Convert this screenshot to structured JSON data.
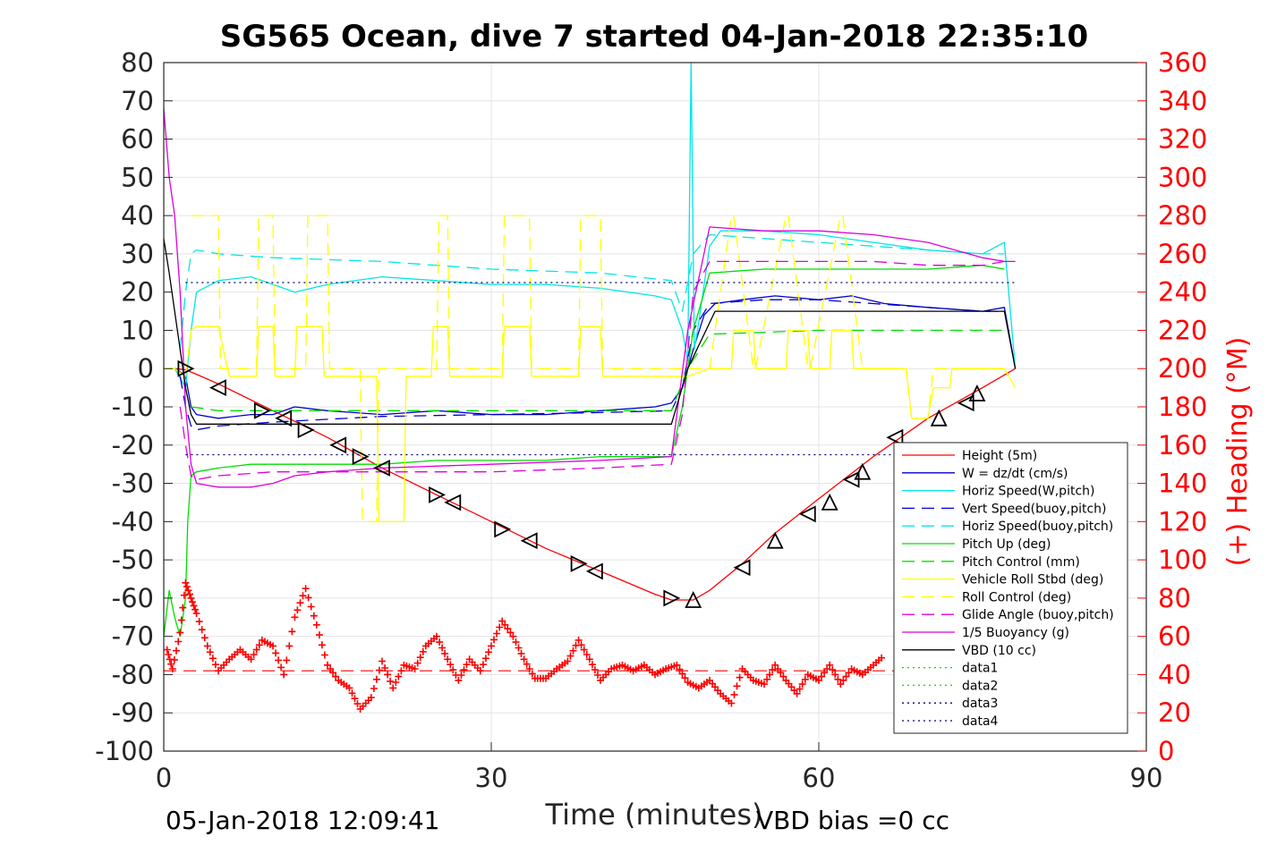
{
  "chart_data": {
    "type": "line",
    "title": "SG565 Ocean, dive 7 started 04-Jan-2018 22:35:10",
    "xlabel": "Time (minutes)",
    "ylabel_right": "(+) Heading (°M)",
    "xlim": [
      0,
      90
    ],
    "ylim": [
      -100,
      80
    ],
    "ylim_right": [
      0,
      360
    ],
    "x_ticks": [
      "0",
      "30",
      "60",
      "90"
    ],
    "y_ticks": [
      "80",
      "70",
      "60",
      "50",
      "40",
      "30",
      "20",
      "10",
      "0",
      "-10",
      "-20",
      "-30",
      "-40",
      "-50",
      "-60",
      "-70",
      "-80",
      "-90",
      "-100"
    ],
    "y_ticks_right": [
      "360",
      "340",
      "320",
      "300",
      "280",
      "260",
      "240",
      "220",
      "200",
      "180",
      "160",
      "140",
      "120",
      "100",
      "80",
      "60",
      "40",
      "20",
      "0"
    ],
    "grid": true,
    "legend_position": "bottom-right",
    "footer_left": "05-Jan-2018 12:09:41",
    "footer_right": "VBD bias =0 cc",
    "colors": {
      "red": "#ff0000",
      "blue": "#0000cc",
      "cyan": "#00e6e6",
      "green": "#00dd00",
      "yellow": "#ffff00",
      "magenta": "#dd00dd",
      "black": "#000000",
      "navy": "#000080"
    },
    "series": [
      {
        "name": "Height (5m)",
        "color": "red",
        "style": "solid",
        "x": [
          0,
          1,
          2,
          3,
          5,
          10,
          15,
          20,
          25,
          30,
          35,
          40,
          45,
          46.5,
          48.5,
          50,
          53,
          56,
          60,
          65,
          70,
          75,
          78
        ],
        "y": [
          0,
          0,
          -0.3,
          -1.5,
          -4,
          -11,
          -18,
          -26,
          -33,
          -40,
          -47,
          -53,
          -59,
          -60.5,
          -60.5,
          -58,
          -51,
          -43,
          -34,
          -23,
          -13,
          -5,
          0
        ]
      },
      {
        "name": "W = dz/dt (cm/s)",
        "color": "blue",
        "style": "solid",
        "x": [
          0,
          1,
          1.6,
          2,
          2.5,
          3,
          5,
          8,
          10,
          12,
          15,
          20,
          25,
          30,
          35,
          40,
          45,
          46.5,
          47.5,
          48.5,
          49.5,
          50.5,
          53,
          56,
          60,
          63,
          66,
          70,
          75,
          77,
          78
        ],
        "y": [
          0,
          0,
          -1,
          -2,
          -10,
          -12,
          -13,
          -12,
          -12,
          -10,
          -11,
          -12,
          -11,
          -12,
          -12,
          -11,
          -10,
          -9,
          -5,
          5,
          14,
          17,
          18,
          19,
          18,
          19,
          17,
          16,
          15,
          16,
          0
        ]
      },
      {
        "name": "Horiz Speed(W,pitch)",
        "color": "cyan",
        "style": "solid",
        "x": [
          0,
          1,
          2,
          2.5,
          3,
          5,
          8,
          10,
          12,
          15,
          20,
          25,
          30,
          35,
          40,
          45,
          46.5,
          47.5,
          48,
          48.3,
          48.6,
          49,
          50,
          51,
          55,
          60,
          65,
          70,
          75,
          77,
          78
        ],
        "y": [
          0,
          0,
          -5,
          10,
          20,
          23,
          24,
          22,
          20,
          22,
          24,
          23,
          22,
          22,
          21,
          19,
          18,
          10,
          2,
          80,
          5,
          12,
          32,
          36,
          36,
          35,
          33,
          31,
          30,
          33,
          0
        ]
      },
      {
        "name": "Vert Speed(buoy,pitch)",
        "color": "blue",
        "style": "dashed",
        "x": [
          1.5,
          2,
          2.5,
          3,
          5,
          10,
          20,
          30,
          40,
          46.5,
          47.5,
          48.5,
          50,
          55,
          60,
          65,
          70,
          75,
          77
        ],
        "y": [
          -2,
          -10,
          -15,
          -16,
          -15,
          -14,
          -12.5,
          -12,
          -11.5,
          -11,
          -5,
          10,
          17,
          18,
          18,
          17,
          16,
          15,
          15
        ]
      },
      {
        "name": "Horiz Speed(buoy,pitch)",
        "color": "cyan",
        "style": "dashed",
        "x": [
          1.5,
          2,
          2.5,
          3,
          5,
          10,
          20,
          30,
          40,
          46.5,
          47.5,
          48.5,
          50,
          55,
          60,
          65,
          70,
          75,
          77
        ],
        "y": [
          5,
          20,
          30,
          31,
          30,
          29,
          28,
          26,
          25,
          23,
          15,
          30,
          35,
          34,
          33,
          32,
          31,
          30,
          30
        ]
      },
      {
        "name": "Pitch Up (deg)",
        "color": "green",
        "style": "solid",
        "x": [
          0,
          0.5,
          1,
          1.5,
          2,
          2.2,
          2.5,
          3,
          5,
          8,
          10,
          15,
          20,
          25,
          30,
          35,
          40,
          45,
          46.5,
          47.5,
          48.5,
          50,
          55,
          60,
          65,
          70,
          75,
          77
        ],
        "y": [
          -70,
          -58,
          -65,
          -70,
          -60,
          -40,
          -28,
          -27,
          -26,
          -25,
          -25,
          -25,
          -25,
          -24,
          -24,
          -24,
          -23,
          -23,
          -23,
          -10,
          10,
          25,
          26,
          26,
          26,
          26,
          27,
          26
        ]
      },
      {
        "name": "Pitch Control (mm)",
        "color": "green",
        "style": "dashed",
        "x": [
          2.5,
          5,
          10,
          20,
          30,
          40,
          46.5,
          48,
          50,
          55,
          60,
          65,
          70,
          75,
          77.5
        ],
        "y": [
          -10,
          -11,
          -11,
          -11,
          -11,
          -11,
          -11,
          0,
          9,
          9.5,
          10,
          10,
          10,
          10,
          10
        ]
      },
      {
        "name": "Vehicle Roll Stbd (deg)",
        "color": "yellow",
        "style": "solid",
        "x": [
          0,
          1,
          2,
          2.5,
          3,
          5,
          6,
          6.2,
          8.5,
          8.7,
          10,
          10.2,
          12,
          12.2,
          14.5,
          14.7,
          18,
          18.2,
          19.5,
          19.7,
          22,
          22.2,
          24.5,
          24.7,
          26,
          26.2,
          31,
          31.2,
          33.5,
          33.7,
          38,
          38.2,
          40,
          40.2,
          46,
          46.5,
          48,
          50,
          52,
          52.2,
          54,
          54.2,
          57,
          57.2,
          59,
          59.2,
          61,
          61.2,
          63,
          63.2,
          68,
          68.5,
          70,
          70.5,
          72,
          72.2,
          76,
          77,
          78
        ],
        "y": [
          0,
          0,
          -2,
          10,
          11,
          11,
          -2,
          -2,
          -2,
          11,
          11,
          -2,
          -2,
          11,
          11,
          -2,
          -2,
          -2,
          -2,
          -40,
          -40,
          -2,
          -2,
          11,
          11,
          -2,
          -2,
          11,
          11,
          -2,
          -2,
          11,
          11,
          -2,
          -2,
          -2,
          -2,
          0,
          0,
          10,
          10,
          0,
          0,
          10,
          10,
          0,
          0,
          10,
          10,
          0,
          0,
          -13,
          -13,
          -5,
          -5,
          0,
          0,
          0,
          -5
        ]
      },
      {
        "name": "Roll Control (deg)",
        "color": "yellow",
        "style": "dashed",
        "x": [
          2.5,
          5,
          5.2,
          8.5,
          8.7,
          10,
          10.2,
          13,
          13.2,
          15,
          15.2,
          18,
          18.2,
          19.5,
          19.7,
          25,
          25.2,
          26,
          26.2,
          31,
          31.2,
          33.5,
          33.7,
          38,
          38.2,
          40,
          40.2,
          46,
          48,
          50,
          52,
          52.2,
          54,
          54.2,
          57,
          57.2,
          59,
          59.2,
          62,
          62.2,
          64,
          64.2,
          68,
          68.5,
          70,
          70.5,
          77
        ],
        "y": [
          40,
          40,
          0,
          0,
          40,
          40,
          0,
          0,
          40,
          40,
          0,
          0,
          -40,
          -40,
          0,
          0,
          40,
          40,
          0,
          0,
          40,
          40,
          0,
          0,
          40,
          40,
          0,
          0,
          0,
          0,
          40,
          40,
          0,
          0,
          40,
          40,
          0,
          0,
          40,
          40,
          0,
          0,
          0,
          -13,
          -13,
          0,
          0
        ]
      },
      {
        "name": "Glide Angle (buoy,pitch)",
        "color": "magenta",
        "style": "dashed",
        "x": [
          1.5,
          2,
          2.5,
          3,
          5,
          10,
          20,
          30,
          40,
          46.5,
          47.5,
          48.5,
          50,
          55,
          60,
          65,
          70,
          75,
          77
        ],
        "y": [
          -10,
          -20,
          -28,
          -29,
          -28,
          -27,
          -27,
          -27,
          -26,
          -25,
          -12,
          20,
          28,
          28,
          28,
          28,
          27,
          27,
          28
        ]
      },
      {
        "name": "1/5 Buoyancy (g)",
        "color": "magenta",
        "style": "solid",
        "x": [
          0,
          0.5,
          1,
          1.5,
          2,
          2.5,
          3,
          5,
          8,
          10,
          12,
          15,
          20,
          30,
          40,
          46.5,
          48,
          50,
          55,
          60,
          65,
          70,
          75,
          77,
          78
        ],
        "y": [
          68,
          50,
          40,
          20,
          -10,
          -25,
          -30,
          -31,
          -31,
          -30,
          -28,
          -27,
          -26,
          -25,
          -24,
          -23,
          10,
          37,
          36,
          36,
          35,
          33,
          29,
          28,
          28
        ]
      },
      {
        "name": "VBD (10 cc)",
        "color": "black",
        "style": "solid",
        "x": [
          0,
          0.5,
          1,
          1.5,
          2,
          2.5,
          3,
          5,
          10,
          20,
          30,
          40,
          46.5,
          48,
          50.5,
          55,
          60,
          65,
          70,
          75,
          77,
          78
        ],
        "y": [
          34,
          25,
          15,
          5,
          -5,
          -12,
          -14.5,
          -14.5,
          -14.5,
          -14.5,
          -14.5,
          -14.5,
          -14.5,
          0,
          15,
          15,
          15,
          15,
          15,
          15,
          15,
          0
        ]
      },
      {
        "name": "data1",
        "color": "green",
        "style": "dotted",
        "x": [],
        "y": []
      },
      {
        "name": "data2",
        "color": "green",
        "style": "dotted",
        "x": [],
        "y": []
      },
      {
        "name": "data3",
        "color": "navy",
        "style": "dotted",
        "x": [
          2,
          78
        ],
        "y": [
          22.5,
          22.5
        ]
      },
      {
        "name": "data4",
        "color": "navy",
        "style": "dotted",
        "x": [
          2,
          78
        ],
        "y": [
          -22.5,
          -22.5
        ]
      }
    ],
    "heading_reference": {
      "color": "red",
      "style": "dashed",
      "x": [
        0,
        78
      ],
      "y_right": [
        42,
        42
      ]
    },
    "heading": {
      "marker": "+",
      "color": "red",
      "x": [
        0.3,
        0.8,
        1.5,
        2,
        2.5,
        3,
        4,
        5,
        6,
        7,
        8,
        9,
        10,
        11,
        12,
        13,
        14,
        15,
        16,
        17,
        18,
        19,
        20,
        21,
        22,
        23,
        24,
        25,
        26,
        27,
        28,
        29,
        30,
        31,
        32,
        33,
        34,
        35,
        36,
        37,
        38,
        39,
        40,
        41,
        42,
        43,
        44,
        45,
        46,
        47,
        48,
        49,
        50,
        51,
        52,
        53,
        54,
        55,
        56,
        57,
        58,
        59,
        60,
        61,
        62,
        63,
        64,
        65,
        66
      ],
      "y_right": [
        53,
        43,
        62,
        88,
        80,
        72,
        55,
        42,
        48,
        53,
        48,
        58,
        55,
        40,
        70,
        85,
        66,
        45,
        37,
        33,
        22,
        28,
        47,
        33,
        45,
        43,
        55,
        60,
        48,
        37,
        48,
        42,
        55,
        68,
        60,
        48,
        38,
        38,
        43,
        47,
        58,
        48,
        37,
        43,
        45,
        42,
        45,
        40,
        43,
        45,
        36,
        33,
        37,
        30,
        25,
        43,
        37,
        35,
        45,
        37,
        30,
        40,
        37,
        45,
        35,
        43,
        40,
        45,
        50
      ]
    },
    "direction_markers": {
      "down": {
        "x": [
          2,
          5,
          9,
          11,
          13,
          16,
          18,
          20,
          25,
          26.5,
          31,
          33.5,
          38,
          39.5,
          46.5
        ],
        "y": [
          0,
          -5,
          -11,
          -13,
          -16,
          -20,
          -23,
          -26,
          -33,
          -35,
          -42,
          -45,
          -51,
          -53,
          -60
        ]
      },
      "up": {
        "x": [
          48.5,
          53,
          56,
          59,
          61,
          63,
          64,
          67,
          71,
          73.5,
          74.5
        ],
        "y": [
          -60.5,
          -52,
          -45,
          -38,
          -35,
          -29,
          -27,
          -18,
          -13,
          -9,
          -6.5
        ]
      }
    }
  }
}
